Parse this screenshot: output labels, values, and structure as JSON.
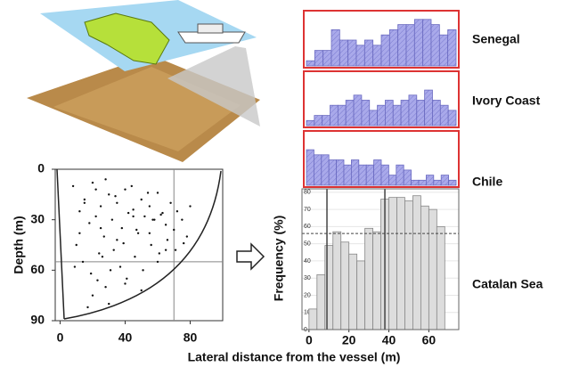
{
  "chart_data": [
    {
      "type": "scatter",
      "y_label": "Depth (m)",
      "x_label": "Lateral distance from the vessel (m)",
      "x": [
        8,
        12,
        15,
        18,
        20,
        22,
        25,
        27,
        30,
        32,
        35,
        38,
        40,
        42,
        45,
        48,
        50,
        52,
        55,
        58,
        60,
        62,
        65,
        68,
        70,
        72,
        75,
        78,
        80,
        10,
        14,
        19,
        24,
        28,
        33,
        37,
        41,
        46,
        51,
        56,
        61,
        66,
        71,
        76,
        20,
        30,
        40,
        50,
        60,
        25,
        35,
        45,
        55,
        65,
        15,
        22,
        28,
        34,
        44,
        54,
        9,
        17,
        23,
        31,
        39,
        47,
        57,
        63,
        12,
        26
      ],
      "values": [
        10,
        25,
        18,
        32,
        8,
        28,
        22,
        40,
        15,
        30,
        20,
        35,
        12,
        26,
        24,
        38,
        18,
        28,
        22,
        30,
        14,
        27,
        33,
        20,
        36,
        25,
        30,
        40,
        22,
        45,
        55,
        62,
        50,
        70,
        48,
        58,
        65,
        52,
        60,
        45,
        50,
        42,
        48,
        44,
        75,
        80,
        68,
        72,
        55,
        35,
        42,
        28,
        38,
        48,
        20,
        12,
        6,
        16,
        10,
        14,
        58,
        82,
        66,
        60,
        44,
        36,
        30,
        26,
        38,
        52
      ],
      "color": "#111111",
      "xlim": [
        -3,
        100
      ],
      "ylim": [
        0,
        90
      ],
      "inverted_y": true,
      "xticks": [
        0,
        40,
        80
      ],
      "yticks": [
        0,
        30,
        60,
        90
      ],
      "vlines": [
        70
      ],
      "hlines": [
        55
      ]
    },
    {
      "type": "bar",
      "title": "Senegal",
      "values": [
        1,
        3,
        3,
        7,
        5,
        5,
        4,
        5,
        4,
        6,
        7,
        8,
        8,
        9,
        9,
        8,
        6,
        7
      ],
      "ylim": [
        0,
        10
      ],
      "color": "#a9a9ea"
    },
    {
      "type": "bar",
      "title": "Ivory Coast",
      "values": [
        1,
        2,
        2,
        4,
        4,
        5,
        6,
        5,
        3,
        4,
        5,
        4,
        5,
        6,
        5,
        7,
        5,
        4,
        3
      ],
      "ylim": [
        0,
        10
      ],
      "color": "#a9a9ea"
    },
    {
      "type": "bar",
      "title": "Chile",
      "values": [
        7,
        6,
        6,
        5,
        5,
        4,
        5,
        4,
        4,
        5,
        4,
        2,
        4,
        3,
        1,
        1,
        2,
        1,
        2,
        1
      ],
      "ylim": [
        0,
        10
      ],
      "color": "#a9a9ea"
    },
    {
      "type": "histogram",
      "title": "Catalan Sea",
      "y_label": "Frequency (%)",
      "bins": [
        0,
        4,
        8,
        12,
        16,
        20,
        24,
        28,
        32,
        36,
        40,
        44,
        48,
        52,
        56,
        60,
        64,
        68
      ],
      "values": [
        12,
        32,
        49,
        57,
        51,
        44,
        40,
        59,
        57,
        76,
        77,
        77,
        75,
        78,
        72,
        70,
        60
      ],
      "color": "#dddddd",
      "xlim": [
        -3.5,
        75
      ],
      "ylim": [
        0,
        82
      ],
      "xticks": [
        0,
        20,
        40,
        60
      ],
      "yticks": [
        0,
        10,
        20,
        30,
        40,
        50,
        60,
        70,
        80
      ],
      "vlines": [
        9,
        38
      ],
      "hlines": [
        56
      ]
    }
  ]
}
